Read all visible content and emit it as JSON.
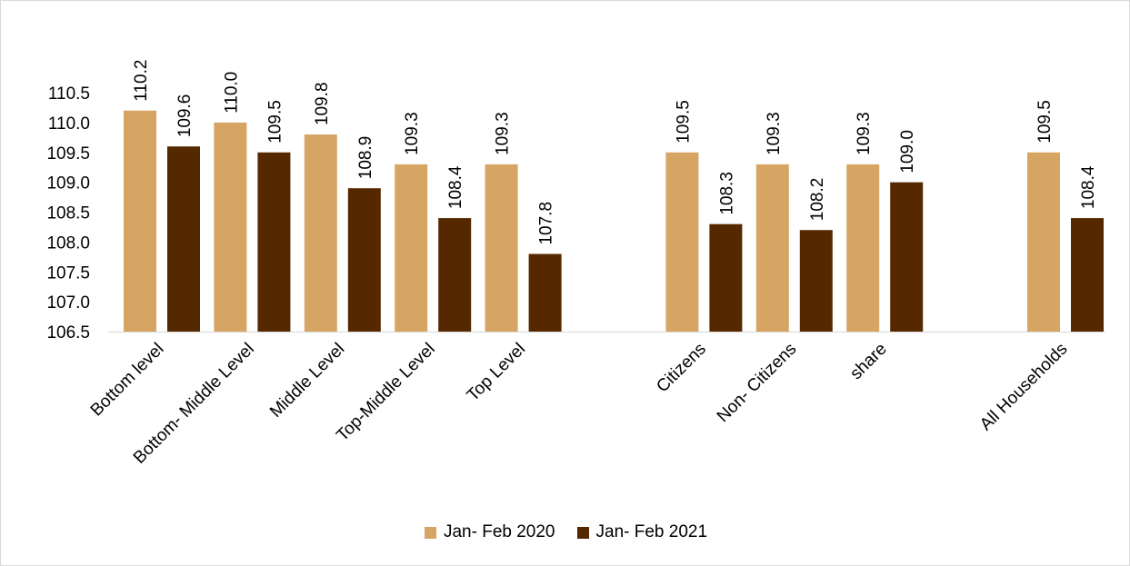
{
  "chart_data": {
    "type": "bar",
    "categories": [
      "Bottom level",
      "Bottom- Middle  Level",
      "Middle Level",
      "Top-Middle Level",
      "Top Level",
      "Citizens",
      "Non- Citizens",
      "share",
      "All Households"
    ],
    "groups": [
      5,
      3,
      1
    ],
    "series": [
      {
        "name": "Jan- Feb 2020",
        "color": "#D6A564",
        "values": [
          110.2,
          110.0,
          109.8,
          109.3,
          109.3,
          109.5,
          109.3,
          109.3,
          109.5
        ]
      },
      {
        "name": "Jan- Feb 2021",
        "color": "#562800",
        "values": [
          109.6,
          109.5,
          108.9,
          108.4,
          107.8,
          108.3,
          108.2,
          109.0,
          108.4
        ]
      }
    ],
    "ylim": [
      106.5,
      110.5
    ],
    "yticks": [
      "106.5",
      "107.0",
      "107.5",
      "108.0",
      "108.5",
      "109.0",
      "109.5",
      "110.0",
      "110.5"
    ],
    "legend_position": "bottom",
    "grid": false
  }
}
